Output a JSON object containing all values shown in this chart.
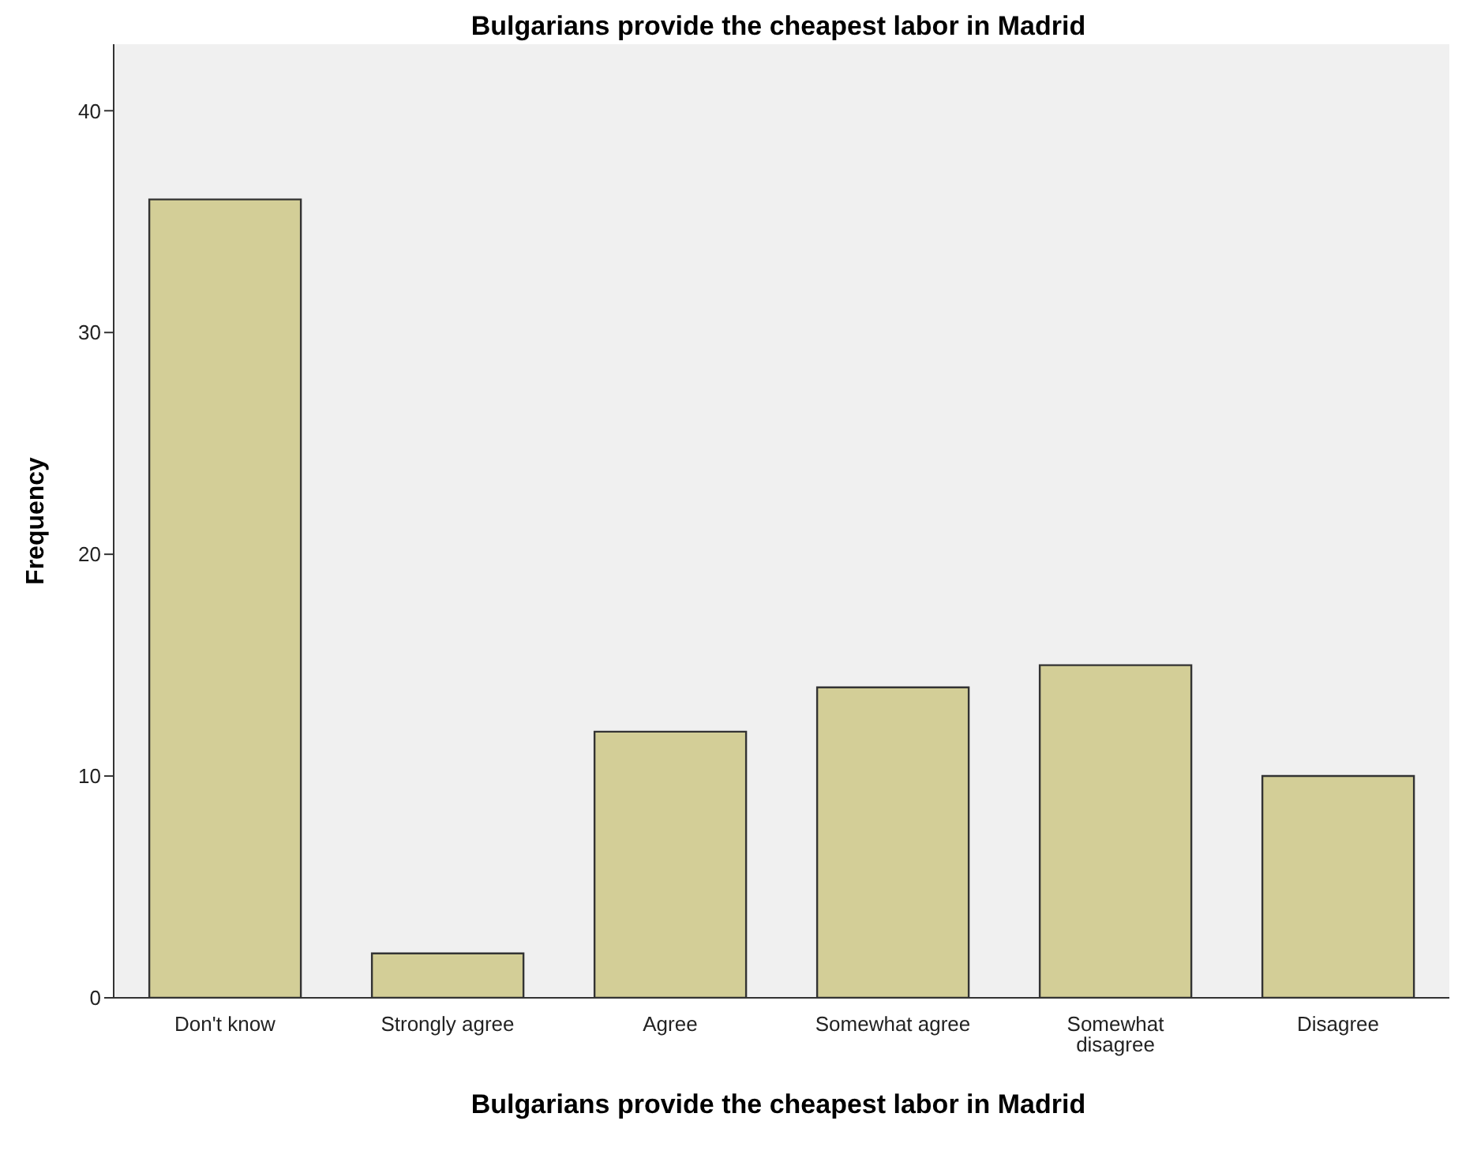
{
  "chart_data": {
    "type": "bar",
    "title": "Bulgarians provide the cheapest labor in Madrid",
    "xlabel": "Bulgarians provide the cheapest labor in Madrid",
    "ylabel": "Frequency",
    "categories": [
      "Don't know",
      "Strongly agree",
      "Agree",
      "Somewhat agree",
      "Somewhat disagree",
      "Disagree"
    ],
    "values": [
      36,
      2,
      12,
      14,
      15,
      10
    ],
    "color": "#d3ce97",
    "ylim": [
      0,
      43
    ],
    "yticks": [
      0,
      10,
      20,
      30,
      40
    ]
  }
}
